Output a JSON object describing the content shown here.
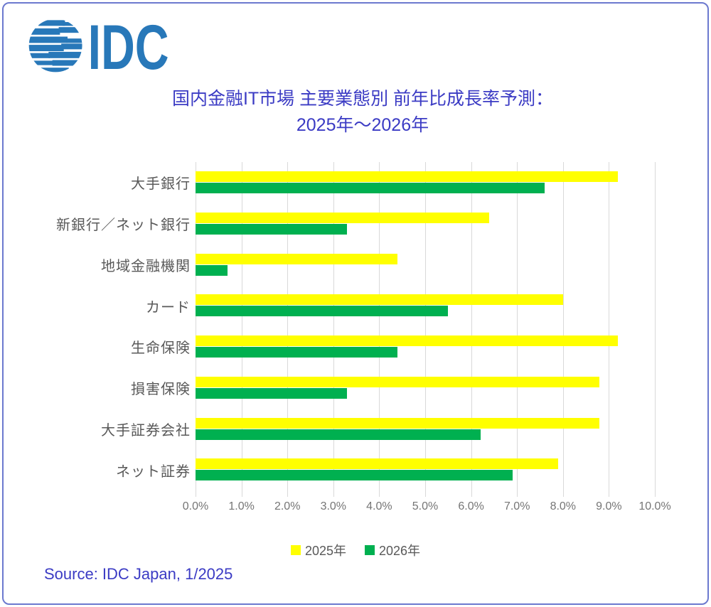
{
  "logo": {
    "text": "IDC",
    "color": "#2878B9"
  },
  "title": {
    "line1": "国内金融IT市場 主要業態別 前年比成長率予測：",
    "line2": "2025年～2026年",
    "color": "#3B3BC4"
  },
  "source": {
    "text": "Source: IDC Japan, 1/2025"
  },
  "colors": {
    "frame_border": "#6C79CF",
    "gridline": "#D9D9D9",
    "category_text": "#595959",
    "tick_text": "#757575"
  },
  "chart_data": {
    "type": "bar",
    "orientation": "horizontal",
    "title": "国内金融IT市場 主要業態別 前年比成長率予測：2025年～2026年",
    "categories": [
      "大手銀行",
      "新銀行／ネット銀行",
      "地域金融機関",
      "カード",
      "生命保険",
      "損害保険",
      "大手証券会社",
      "ネット証券"
    ],
    "series": [
      {
        "name": "2025年",
        "color": "#FFFF00",
        "values": [
          9.2,
          6.4,
          4.4,
          8.0,
          9.2,
          8.8,
          8.8,
          7.9
        ]
      },
      {
        "name": "2026年",
        "color": "#00B050",
        "values": [
          7.6,
          3.3,
          0.7,
          5.5,
          4.4,
          3.3,
          6.2,
          6.9
        ]
      }
    ],
    "value_unit": "%",
    "xlabel": "",
    "ylabel": "",
    "xlim": [
      0,
      10
    ],
    "x_ticks": [
      "0.0%",
      "1.0%",
      "2.0%",
      "3.0%",
      "4.0%",
      "5.0%",
      "6.0%",
      "7.0%",
      "8.0%",
      "9.0%",
      "10.0%"
    ],
    "grid": true,
    "legend_position": "bottom"
  }
}
